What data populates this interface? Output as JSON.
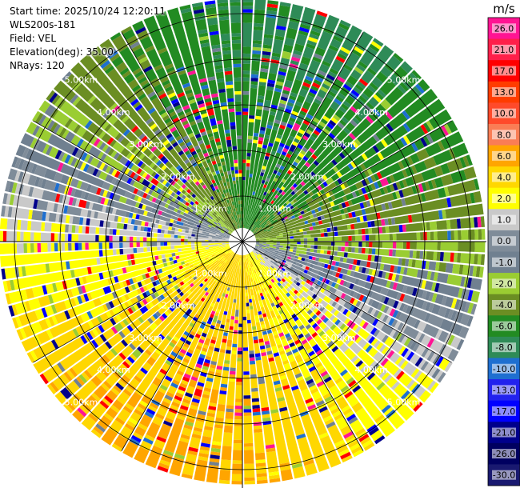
{
  "header": {
    "start_time": "Start time: 2025/10/24 12:20:11",
    "instrument": "WLS200s-181",
    "field": "Field: VEL",
    "elevation": "Elevation(deg): 35.00",
    "nrays": "NRays: 120"
  },
  "range_rings": [
    {
      "range_km": 1,
      "label": "1.00km"
    },
    {
      "range_km": 2,
      "label": "2.00km"
    },
    {
      "range_km": 3,
      "label": "3.00km"
    },
    {
      "range_km": 4,
      "label": "4.00km"
    },
    {
      "range_km": 5,
      "label": "5.00km"
    }
  ],
  "spoke_angles_deg": [
    0,
    30,
    60,
    90,
    120,
    150,
    180,
    210,
    240,
    270,
    300,
    330
  ],
  "colorbar": {
    "unit": "m/s",
    "bins": [
      {
        "value": "26.0",
        "color": "#ff1493"
      },
      {
        "value": "21.0",
        "color": "#ff1f4a"
      },
      {
        "value": "17.0",
        "color": "#ff0000"
      },
      {
        "value": "13.0",
        "color": "#ff3c00"
      },
      {
        "value": "10.0",
        "color": "#ff4a2a"
      },
      {
        "value": "8.0",
        "color": "#fa7d55"
      },
      {
        "value": "6.0",
        "color": "#ffa500"
      },
      {
        "value": "4.0",
        "color": "#ffd700"
      },
      {
        "value": "2.0",
        "color": "#ffff00"
      },
      {
        "value": "1.0",
        "color": "#c9c9c9"
      },
      {
        "value": "0.0",
        "color": "#7f8c99"
      },
      {
        "value": "-1.0",
        "color": "#708090"
      },
      {
        "value": "-2.0",
        "color": "#9acd32"
      },
      {
        "value": "-4.0",
        "color": "#6b8e23"
      },
      {
        "value": "-6.0",
        "color": "#228b22"
      },
      {
        "value": "-8.0",
        "color": "#2e8b57"
      },
      {
        "value": "-10.0",
        "color": "#1e6fd0"
      },
      {
        "value": "-13.0",
        "color": "#2222ee"
      },
      {
        "value": "-17.0",
        "color": "#0000ff"
      },
      {
        "value": "-21.0",
        "color": "#00008b"
      },
      {
        "value": "-26.0",
        "color": "#000060"
      },
      {
        "value": "-30.0",
        "color": "#191970"
      }
    ]
  },
  "wind_pattern": {
    "max_range_km": 5.3,
    "downwind_direction_deg": 200,
    "speed_mps": 5.5,
    "noise_start_km": 0.9,
    "noise_palette": [
      "#ff1493",
      "#ff0000",
      "#0000ff",
      "#00008b",
      "#708090",
      "#9acd32",
      "#ffff00",
      "#1e6fd0"
    ]
  }
}
